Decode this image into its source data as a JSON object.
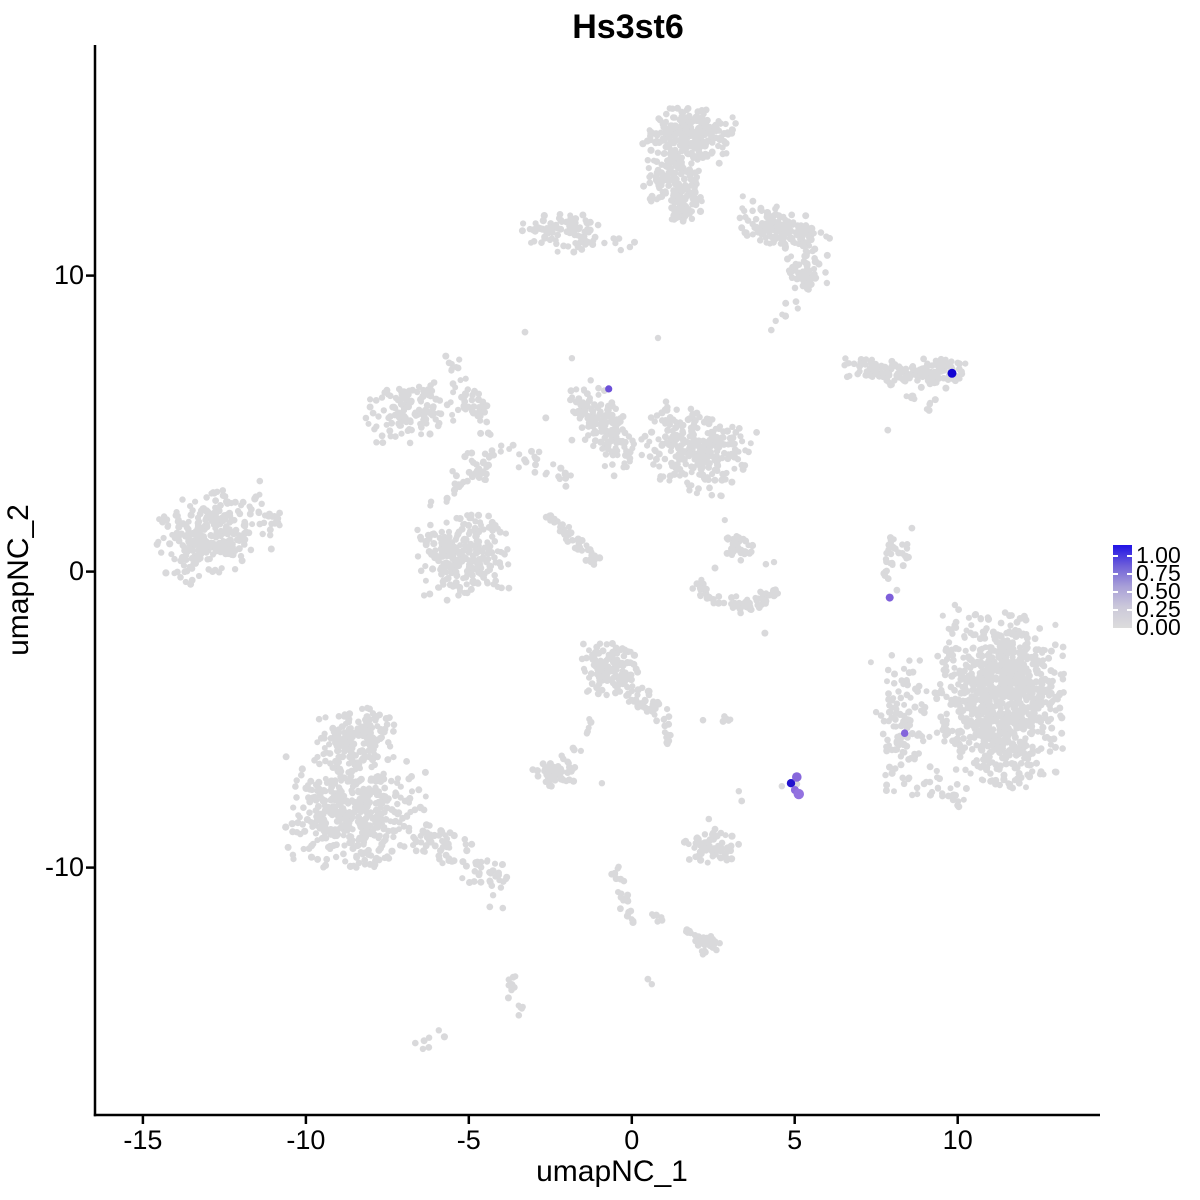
{
  "title": "Hs3st6",
  "axes": {
    "x": {
      "label": "umapNC_1",
      "ticks": [
        "-15",
        "-10",
        "-5",
        "0",
        "5",
        "10"
      ],
      "tick_values": [
        -15,
        -10,
        -5,
        0,
        5,
        10
      ]
    },
    "y": {
      "label": "umapNC_2",
      "ticks": [
        "10",
        "0",
        "-10"
      ],
      "tick_values": [
        10,
        0,
        -10
      ]
    }
  },
  "legend": {
    "labels": [
      "1.00",
      "0.75",
      "0.50",
      "0.25",
      "0.00"
    ],
    "gradient": [
      "#2012E6",
      "#6E5FD9",
      "#A89FD8",
      "#CCC9DA",
      "#DCDCDC"
    ]
  },
  "colors": {
    "point_grey": "#D9D9DB",
    "axis": "#000000",
    "background": "#FFFFFF",
    "max_expression_blue": "#1203D2"
  },
  "chart_data": {
    "type": "scatter",
    "title": "Hs3st6",
    "xlabel": "umapNC_1",
    "ylabel": "umapNC_2",
    "xlim": [
      -16.47,
      14.36
    ],
    "ylim": [
      -18.36,
      17.79
    ],
    "grid": false,
    "legend_position": "right",
    "clusters": [
      {
        "cx": 1.78,
        "cy": 14.75,
        "rx": 1.47,
        "ry": 1.05,
        "rot": 0,
        "n": 240
      },
      {
        "cx": 1.23,
        "cy": 13.29,
        "rx": 0.9,
        "ry": 0.9,
        "rot": 0,
        "n": 120
      },
      {
        "cx": 1.63,
        "cy": 12.38,
        "rx": 0.62,
        "ry": 0.72,
        "rot": 0,
        "n": 55
      },
      {
        "cx": 4.6,
        "cy": 11.6,
        "rx": 1.5,
        "ry": 0.7,
        "rot": 20,
        "n": 150
      },
      {
        "cx": 5.31,
        "cy": 10.12,
        "rx": 0.7,
        "ry": 0.85,
        "rot": 0,
        "n": 55
      },
      {
        "cx": -2.06,
        "cy": 11.47,
        "rx": 1.38,
        "ry": 0.7,
        "rot": 5,
        "n": 88
      },
      {
        "cx": 7.85,
        "cy": 6.77,
        "rx": 1.38,
        "ry": 0.46,
        "rot": 5,
        "n": 100
      },
      {
        "cx": 9.45,
        "cy": 6.77,
        "rx": 0.82,
        "ry": 0.58,
        "rot": 0,
        "n": 85
      },
      {
        "cx": -6.87,
        "cy": 5.39,
        "rx": 1.45,
        "ry": 1.12,
        "rot": -15,
        "n": 125
      },
      {
        "cx": -4.97,
        "cy": 5.63,
        "rx": 0.82,
        "ry": 0.6,
        "rot": 0,
        "n": 22
      },
      {
        "cx": -4.66,
        "cy": 3.36,
        "rx": 0.52,
        "ry": 0.46,
        "rot": 0,
        "n": 18
      },
      {
        "cx": -0.8,
        "cy": 4.88,
        "rx": 1.55,
        "ry": 0.82,
        "rot": 53,
        "n": 165
      },
      {
        "cx": 1.93,
        "cy": 4.17,
        "rx": 1.7,
        "ry": 1.43,
        "rot": 20,
        "n": 270
      },
      {
        "cx": -5.15,
        "cy": 0.49,
        "rx": 1.62,
        "ry": 1.53,
        "rot": 0,
        "n": 265
      },
      {
        "cx": -12.88,
        "cy": 1.27,
        "rx": 1.92,
        "ry": 1.43,
        "rot": -18,
        "n": 290
      },
      {
        "cx": 3.22,
        "cy": 0.86,
        "rx": 0.56,
        "ry": 0.5,
        "rot": 0,
        "n": 40
      },
      {
        "cx": 11.29,
        "cy": -4.34,
        "rx": 1.98,
        "ry": 3.06,
        "rot": 0,
        "n": 960
      },
      {
        "cx": 8.4,
        "cy": -4.95,
        "rx": 1.1,
        "ry": 2.66,
        "rot": 0,
        "n": 120
      },
      {
        "cx": -8.44,
        "cy": -5.59,
        "rx": 1.25,
        "ry": 1.02,
        "rot": 0,
        "n": 170
      },
      {
        "cx": -8.4,
        "cy": -8.12,
        "rx": 2.22,
        "ry": 1.9,
        "rot": 0,
        "n": 440
      },
      {
        "cx": -0.61,
        "cy": -3.26,
        "rx": 0.93,
        "ry": 0.92,
        "rot": 0,
        "n": 130
      },
      {
        "cx": -2.36,
        "cy": -6.77,
        "rx": 0.72,
        "ry": 0.55,
        "rot": 0,
        "n": 55
      },
      {
        "cx": 2.42,
        "cy": -9.31,
        "rx": 0.9,
        "ry": 0.55,
        "rot": 10,
        "n": 62
      },
      {
        "cx": 2.36,
        "cy": -12.62,
        "rx": 0.46,
        "ry": 0.34,
        "rot": 0,
        "n": 30
      }
    ],
    "strands": [
      {
        "pts": [
          [
            5.2,
            9.3
          ],
          [
            4.3,
            8.2
          ]
        ],
        "w": 0.12,
        "n": 7
      },
      {
        "pts": [
          [
            -0.83,
            11.2
          ],
          [
            0.55,
            10.96
          ]
        ],
        "w": 0.1,
        "n": 7
      },
      {
        "pts": [
          [
            8.37,
            6.1
          ],
          [
            9.2,
            5.66
          ]
        ],
        "w": 0.1,
        "n": 10
      },
      {
        "pts": [
          [
            -5.74,
            7.42
          ],
          [
            -4.11,
            4.34
          ]
        ],
        "w": 0.18,
        "n": 26
      },
      {
        "pts": [
          [
            -4.11,
            4.34
          ],
          [
            -6.26,
            2.21
          ]
        ],
        "w": 0.2,
        "n": 28
      },
      {
        "pts": [
          [
            -4.11,
            4.17
          ],
          [
            -1.84,
            3.09
          ]
        ],
        "w": 0.18,
        "n": 24
      },
      {
        "pts": [
          [
            -2.61,
            1.91
          ],
          [
            -1.04,
            0.32
          ]
        ],
        "w": 0.07,
        "n": 46
      },
      {
        "pts": [
          [
            -11.56,
            2.52
          ],
          [
            -10.74,
            1.5
          ]
        ],
        "w": 0.12,
        "n": 14
      },
      {
        "pts": [
          [
            1.9,
            -0.46
          ],
          [
            2.76,
            -1.06
          ],
          [
            3.68,
            -1.13
          ],
          [
            4.51,
            -0.59
          ]
        ],
        "w": 0.12,
        "n": 80
      },
      {
        "pts": [
          [
            8.01,
            1.33
          ],
          [
            7.79,
            0.52
          ],
          [
            7.88,
            -0.22
          ]
        ],
        "w": 0.08,
        "n": 20
      },
      {
        "pts": [
          [
            8.4,
            0.96
          ],
          [
            8.31,
            0.12
          ]
        ],
        "w": 0.07,
        "n": 10
      },
      {
        "pts": [
          [
            8.83,
            -7.21
          ],
          [
            10.21,
            -7.72
          ]
        ],
        "w": 0.15,
        "n": 22
      },
      {
        "pts": [
          [
            -6.5,
            -8.8
          ],
          [
            -3.9,
            -10.56
          ]
        ],
        "w": 0.28,
        "n": 85
      },
      {
        "pts": [
          [
            -0.06,
            -4.0
          ],
          [
            0.98,
            -4.88
          ]
        ],
        "w": 0.18,
        "n": 40
      },
      {
        "pts": [
          [
            1.04,
            -4.88
          ],
          [
            1.1,
            -5.86
          ]
        ],
        "w": 0.08,
        "n": 12
      },
      {
        "pts": [
          [
            -1.23,
            -4.88
          ],
          [
            -1.78,
            -6.1
          ]
        ],
        "w": 0.1,
        "n": 9
      },
      {
        "pts": [
          [
            2.58,
            -4.81
          ],
          [
            3.04,
            -5.08
          ]
        ],
        "w": 0.07,
        "n": 6
      },
      {
        "pts": [
          [
            -0.61,
            -9.88
          ],
          [
            -0.34,
            -10.83
          ],
          [
            0.03,
            -11.64
          ],
          [
            -0.15,
            -12.01
          ]
        ],
        "w": 0.09,
        "n": 24
      },
      {
        "pts": [
          [
            0.49,
            -11.57
          ],
          [
            0.95,
            -11.84
          ]
        ],
        "w": 0.06,
        "n": 6
      },
      {
        "pts": [
          [
            1.6,
            -12.04
          ],
          [
            2.09,
            -12.38
          ]
        ],
        "w": 0.07,
        "n": 6
      },
      {
        "pts": [
          [
            -3.56,
            -13.6
          ],
          [
            -3.77,
            -14.27
          ],
          [
            -3.44,
            -14.75
          ],
          [
            -3.19,
            -15.08
          ]
        ],
        "w": 0.08,
        "n": 16
      },
      {
        "pts": [
          [
            -6.5,
            -16.1
          ],
          [
            -5.89,
            -15.56
          ]
        ],
        "w": 0.07,
        "n": 7
      }
    ],
    "singles": [
      [
        7.85,
        4.78
      ],
      [
        -1.84,
        4.44
      ],
      [
        -2.64,
        5.19
      ],
      [
        2.45,
        2.58
      ],
      [
        2.85,
        1.74
      ],
      [
        0.8,
        7.89
      ],
      [
        -1.84,
        7.21
      ],
      [
        -3.28,
        8.09
      ],
      [
        2.55,
        0.12
      ],
      [
        4.11,
        0.25
      ],
      [
        4.36,
        0.32
      ],
      [
        8.13,
        -0.63
      ],
      [
        8.59,
        1.47
      ],
      [
        9.91,
        -1.13
      ],
      [
        10.52,
        -1.47
      ],
      [
        4.08,
        -2.08
      ],
      [
        -0.92,
        -7.15
      ],
      [
        2.18,
        -5.02
      ],
      [
        4.6,
        -7.25
      ],
      [
        5.06,
        -7.18
      ],
      [
        -4.36,
        -11.33
      ],
      [
        -3.96,
        -11.37
      ],
      [
        2.36,
        -8.36
      ],
      [
        2.55,
        -8.7
      ],
      [
        3.28,
        -7.42
      ],
      [
        3.37,
        -7.75
      ],
      [
        0.49,
        -13.77
      ],
      [
        0.61,
        -13.94
      ]
    ],
    "expressing_cells": [
      {
        "x": 9.82,
        "y": 6.7,
        "value": 1.0,
        "color": "#1203D2",
        "r": 4.5
      },
      {
        "x": -0.71,
        "y": 6.17,
        "value": 0.6,
        "color": "#6C50D8",
        "r": 3.6
      },
      {
        "x": 7.91,
        "y": -0.88,
        "value": 0.55,
        "color": "#7E5FDA",
        "r": 4.0
      },
      {
        "x": 8.37,
        "y": -5.46,
        "value": 0.5,
        "color": "#8365DB",
        "r": 3.8
      },
      {
        "x": 4.88,
        "y": -7.15,
        "value": 0.95,
        "color": "#2213CE",
        "r": 4.2
      },
      {
        "x": 5.06,
        "y": -6.94,
        "value": 0.5,
        "color": "#8767DC",
        "r": 4.8
      },
      {
        "x": 5.0,
        "y": -7.38,
        "value": 0.45,
        "color": "#8C6CDE",
        "r": 4.0
      },
      {
        "x": 5.12,
        "y": -7.52,
        "value": 0.4,
        "color": "#9372E0",
        "r": 5.2
      }
    ]
  }
}
